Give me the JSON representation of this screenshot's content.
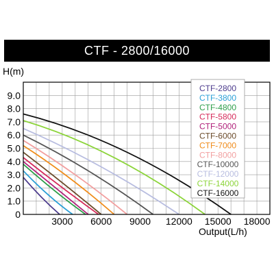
{
  "chart_data": {
    "type": "line",
    "title": "CTF - 2800/16000",
    "ylabel": "H(m)",
    "xlabel": "Output(L/h)",
    "xlim": [
      0,
      19000
    ],
    "ylim": [
      0,
      10
    ],
    "x_ticks": [
      "3000",
      "6000",
      "9000",
      "12000",
      "15000",
      "18000"
    ],
    "y_ticks": [
      "0",
      "1.0",
      "2.0",
      "3.0",
      "4.0",
      "5.0",
      "6.0",
      "7.0",
      "8.0",
      "9.0"
    ],
    "grid": true,
    "legend_position": "right",
    "series": [
      {
        "name": "CTF-2800",
        "color": "#4b3a8c",
        "x": [
          0,
          1400,
          2800
        ],
        "y": [
          2.8,
          1.3,
          0
        ]
      },
      {
        "name": "CTF-3800",
        "color": "#2a9fd6",
        "x": [
          0,
          1900,
          3800
        ],
        "y": [
          3.3,
          1.5,
          0
        ]
      },
      {
        "name": "CTF-4800",
        "color": "#2e9e4a",
        "x": [
          0,
          2400,
          4800
        ],
        "y": [
          3.8,
          1.8,
          0
        ]
      },
      {
        "name": "CTF-5800",
        "color": "#d62b5a",
        "x": [
          0,
          2900,
          5800
        ],
        "y": [
          4.3,
          2.1,
          0
        ]
      },
      {
        "name": "CTF-5000",
        "color": "#b0207a",
        "x": [
          0,
          2500,
          5000
        ],
        "y": [
          4.0,
          2.0,
          0
        ]
      },
      {
        "name": "CTF-6000",
        "color": "#6b4b2a",
        "x": [
          0,
          3000,
          6000
        ],
        "y": [
          4.7,
          2.4,
          0
        ]
      },
      {
        "name": "CTF-7000",
        "color": "#f08c1a",
        "x": [
          0,
          3500,
          7000
        ],
        "y": [
          5.2,
          2.8,
          0
        ]
      },
      {
        "name": "CTF-8000",
        "color": "#f2a0a0",
        "x": [
          0,
          4000,
          8000
        ],
        "y": [
          5.6,
          3.0,
          0
        ]
      },
      {
        "name": "CTF-10000",
        "color": "#555555",
        "x": [
          0,
          5000,
          10000
        ],
        "y": [
          6.0,
          3.3,
          0
        ]
      },
      {
        "name": "CTF-12000",
        "color": "#b8bde0",
        "x": [
          0,
          6000,
          12000
        ],
        "y": [
          6.5,
          3.6,
          0
        ]
      },
      {
        "name": "CTF-14000",
        "color": "#8cd43a",
        "x": [
          0,
          7000,
          14000
        ],
        "y": [
          7.1,
          4.3,
          0
        ]
      },
      {
        "name": "CTF-16000",
        "color": "#111111",
        "x": [
          0,
          8000,
          16000
        ],
        "y": [
          7.6,
          4.7,
          0
        ]
      }
    ]
  }
}
